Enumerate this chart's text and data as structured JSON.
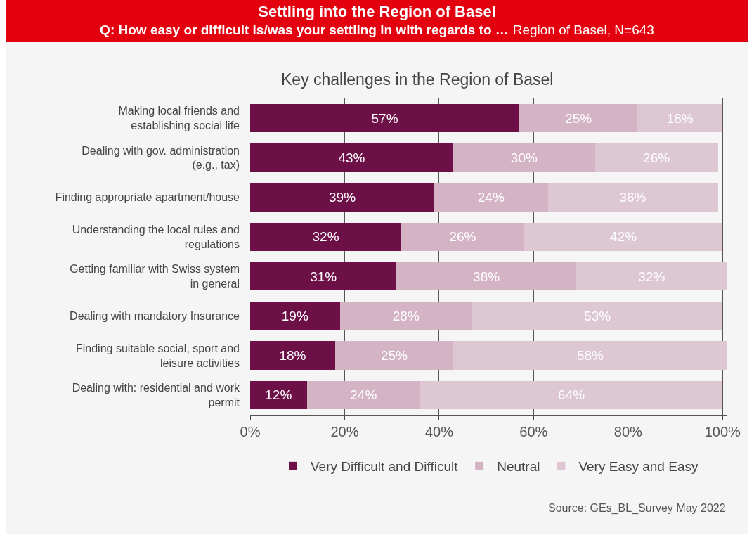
{
  "chart_data": {
    "type": "bar",
    "orientation": "horizontal",
    "stacked": true,
    "title": "Settling into the Region of Basel",
    "subtitle": "Q: How easy or difficult is/was your settling in with regards to …",
    "annotations": [
      "Region of Basel, N=643",
      "Key challenges in the Region of Basel",
      "Source: GEs_BL_Survey May 2022"
    ],
    "categories": [
      "Making local friends and establishing social life",
      "Dealing with gov. administration (e.g., tax)",
      "Finding appropriate apartment/house",
      "Understanding the local rules and regulations",
      "Getting familiar with Swiss system in general",
      "Dealing with mandatory Insurance",
      "Finding suitable social, sport and leisure activities",
      "Dealing with: residential and work permit"
    ],
    "series": [
      {
        "name": "Very Difficult and Difficult",
        "color": "#6e1048",
        "values": [
          57,
          43,
          39,
          32,
          31,
          19,
          18,
          12
        ],
        "value_labels": [
          "57%",
          "43%",
          "39%",
          "32%",
          "31%",
          "19%",
          "18%",
          "12%"
        ]
      },
      {
        "name": "Neutral",
        "color": "#d4b3c4",
        "values": [
          25,
          30,
          24,
          26,
          38,
          28,
          25,
          24
        ],
        "value_labels": [
          "25%",
          "30%",
          "24%",
          "26%",
          "38%",
          "28%",
          "25%",
          "24%"
        ]
      },
      {
        "name": "Very Easy and Easy",
        "color": "#dcc7d2",
        "values": [
          18,
          26,
          36,
          42,
          32,
          53,
          58,
          64
        ],
        "value_labels": [
          "18%",
          "26%",
          "36%",
          "42%",
          "32%",
          "53%",
          "58%",
          "64%"
        ]
      }
    ],
    "xlim": [
      0,
      101
    ],
    "xticks": [
      {
        "value": 0,
        "label": "0%"
      },
      {
        "value": 20,
        "label": "20%"
      },
      {
        "value": 40,
        "label": "40%"
      },
      {
        "value": 60,
        "label": "60%"
      },
      {
        "value": 80,
        "label": "80%"
      },
      {
        "value": 100,
        "label": "100%"
      }
    ],
    "grid": "x",
    "legend": "bottom"
  }
}
